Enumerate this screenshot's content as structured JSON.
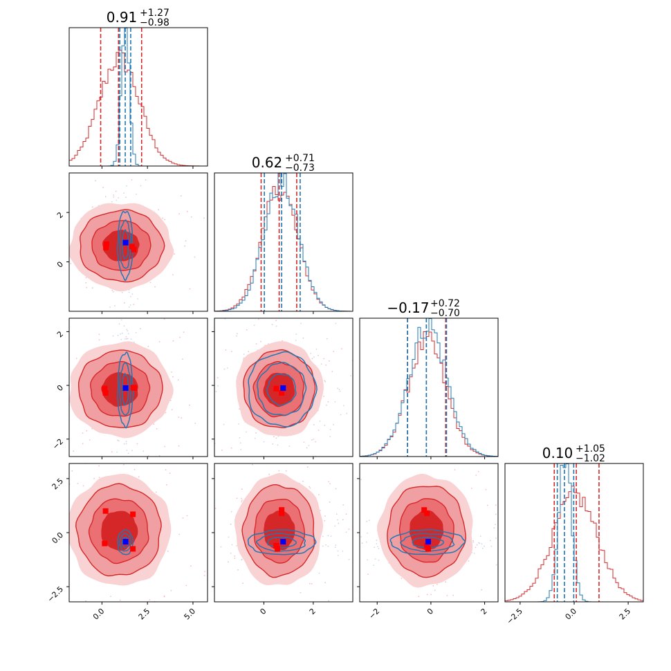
{
  "chart_data": {
    "type": "corner",
    "colors": {
      "primary": "#d62728",
      "secondary": "#1f77b4",
      "truth_primary": "#ff0000",
      "truth_secondary": "#0000ff"
    },
    "parameters": [
      {
        "title": {
          "value": "0.91",
          "plus": "+1.27",
          "minus": "−0.98"
        },
        "range": [
          -1.8,
          5.8
        ],
        "ticks": [
          0.0,
          2.5,
          5.0
        ],
        "tick_labels": [
          "0.0",
          "2.5",
          "5.0"
        ],
        "quantiles_red": [
          -0.07,
          0.91,
          2.18
        ],
        "quantiles_blue": [
          0.98,
          1.28,
          1.58
        ],
        "hist_center_red": 0.95,
        "hist_sigma_red": 1.1,
        "hist_center_blue": 1.28,
        "hist_sigma_blue": 0.22
      },
      {
        "title": {
          "value": "0.62",
          "plus": "+0.71",
          "minus": "−0.73"
        },
        "range": [
          -2.0,
          3.6
        ],
        "ticks": [
          0,
          2
        ],
        "tick_labels": [
          "0",
          "2"
        ],
        "quantiles_red": [
          -0.11,
          0.62,
          1.33
        ],
        "quantiles_blue": [
          0.02,
          0.72,
          1.47
        ],
        "hist_center_red": 0.65,
        "hist_sigma_red": 0.72,
        "hist_center_blue": 0.7,
        "hist_sigma_blue": 0.7
      },
      {
        "title": {
          "value": "−0.17",
          "plus": "+0.72",
          "minus": "−0.70"
        },
        "range": [
          -2.65,
          2.5
        ],
        "ticks": [
          -2,
          0,
          2
        ],
        "tick_labels": [
          "−2",
          "0",
          "2"
        ],
        "quantiles_red": [
          -0.87,
          -0.17,
          0.55
        ],
        "quantiles_blue": [
          -0.87,
          -0.17,
          0.58
        ],
        "hist_center_red": -0.15,
        "hist_sigma_red": 0.71,
        "hist_center_blue": -0.12,
        "hist_sigma_blue": 0.71
      },
      {
        "title": {
          "value": "0.10",
          "plus": "+1.05",
          "minus": "−1.02"
        },
        "range": [
          -3.2,
          3.2
        ],
        "ticks": [
          -2.5,
          0.0,
          2.5
        ],
        "tick_labels": [
          "−2.5",
          "0.0",
          "2.5"
        ],
        "quantiles_red": [
          -0.92,
          0.1,
          1.15
        ],
        "quantiles_blue": [
          -0.78,
          -0.45,
          -0.02
        ],
        "hist_center_red": 0.05,
        "hist_sigma_red": 1.05,
        "hist_center_blue": -0.42,
        "hist_sigma_blue": 0.3
      }
    ],
    "pairs": [
      {
        "row": 1,
        "col": 0,
        "red": {
          "cx": 1.05,
          "cy": 0.65,
          "sx": 1.15,
          "sy": 0.72
        },
        "blue": {
          "cx": 1.28,
          "cy": 0.7,
          "sx": 0.22,
          "sy": 0.72
        },
        "truths_red": [
          [
            0.22,
            0.58
          ],
          [
            0.25,
            0.72
          ],
          [
            1.65,
            0.62
          ],
          [
            1.75,
            0.5
          ]
        ],
        "truth_blue": [
          1.3,
          0.78
        ]
      },
      {
        "row": 2,
        "col": 0,
        "red": {
          "cx": 1.0,
          "cy": -0.15,
          "sx": 1.15,
          "sy": 0.72
        },
        "blue": {
          "cx": 1.28,
          "cy": -0.15,
          "sx": 0.22,
          "sy": 0.72
        },
        "truths_red": [
          [
            0.15,
            -0.12
          ],
          [
            0.2,
            -0.28
          ],
          [
            1.72,
            -0.08
          ],
          [
            1.78,
            -0.1
          ]
        ],
        "truth_blue": [
          1.3,
          -0.1
        ]
      },
      {
        "row": 2,
        "col": 1,
        "red": {
          "cx": 0.62,
          "cy": -0.15,
          "sx": 0.72,
          "sy": 0.72
        },
        "blue": {
          "cx": 0.72,
          "cy": -0.15,
          "sx": 0.72,
          "sy": 0.72
        },
        "truths_red": [
          [
            0.5,
            -0.12
          ],
          [
            0.72,
            -0.28
          ]
        ],
        "truth_blue": [
          0.78,
          -0.1
        ]
      },
      {
        "row": 3,
        "col": 0,
        "red": {
          "cx": 0.95,
          "cy": 0.1,
          "sx": 1.15,
          "sy": 1.05
        },
        "blue": {
          "cx": 1.28,
          "cy": -0.45,
          "sx": 0.22,
          "sy": 0.3
        },
        "truths_red": [
          [
            0.2,
            1.0
          ],
          [
            0.15,
            -0.5
          ],
          [
            1.7,
            0.85
          ],
          [
            1.7,
            -0.75
          ]
        ],
        "truth_blue": [
          1.3,
          -0.42
        ]
      },
      {
        "row": 3,
        "col": 1,
        "red": {
          "cx": 0.62,
          "cy": 0.1,
          "sx": 0.72,
          "sy": 1.05
        },
        "blue": {
          "cx": 0.72,
          "cy": -0.45,
          "sx": 0.72,
          "sy": 0.3
        },
        "truths_red": [
          [
            0.72,
            1.05
          ],
          [
            0.72,
            0.9
          ],
          [
            0.5,
            -0.6
          ],
          [
            0.55,
            -0.75
          ]
        ],
        "truth_blue": [
          0.78,
          -0.42
        ]
      },
      {
        "row": 3,
        "col": 2,
        "red": {
          "cx": -0.17,
          "cy": 0.1,
          "sx": 0.72,
          "sy": 1.05
        },
        "blue": {
          "cx": -0.12,
          "cy": -0.45,
          "sx": 0.72,
          "sy": 0.3
        },
        "truths_red": [
          [
            -0.25,
            1.05
          ],
          [
            -0.15,
            0.9
          ],
          [
            -0.15,
            -0.6
          ],
          [
            -0.1,
            -0.75
          ]
        ],
        "truth_blue": [
          -0.1,
          -0.42
        ]
      }
    ],
    "row_ticks": [
      null,
      {
        "ticks": [
          0,
          2
        ],
        "tick_labels": [
          "0",
          "2"
        ]
      },
      {
        "ticks": [
          -2,
          0,
          2
        ],
        "tick_labels": [
          "−2",
          "0",
          "2"
        ]
      },
      {
        "ticks": [
          -2.5,
          0.0,
          2.5
        ],
        "tick_labels": [
          "−2.5",
          "0.0",
          "2.5"
        ]
      }
    ]
  }
}
